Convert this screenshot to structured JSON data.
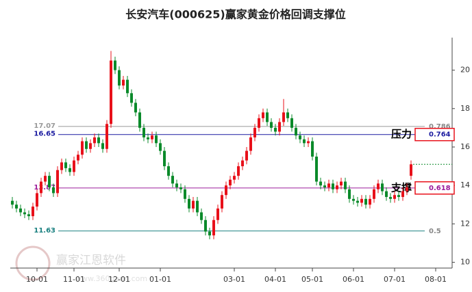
{
  "chart_data": {
    "type": "candlestick",
    "title": "长安汽车(000625)赢家黄金价格回调支撑位",
    "watermark": "赢家江恩软件",
    "watermark_url": "www.360gann.com",
    "open": [
      13.2,
      13.0,
      12.8,
      12.6,
      12.5,
      12.4,
      12.9,
      13.6,
      14.2,
      14.5,
      13.9,
      13.6,
      14.8,
      15.2,
      14.9,
      14.7,
      15.3,
      15.6,
      16.3,
      15.9,
      16.2,
      16.5,
      16.2,
      15.9,
      17.2,
      20.5,
      20.0,
      19.2,
      19.5,
      18.8,
      18.3,
      17.8,
      17.0,
      16.5,
      16.4,
      16.6,
      16.2,
      15.8,
      15.0,
      14.5,
      14.1,
      13.9,
      13.8,
      13.3,
      12.8,
      13.2,
      12.6,
      12.2,
      11.6,
      11.4,
      12.2,
      12.8,
      13.5,
      14.0,
      14.3,
      14.5,
      15.0,
      15.3,
      15.8,
      16.5,
      17.0,
      17.5,
      17.8,
      17.3,
      17.0,
      16.8,
      17.3,
      17.8,
      17.5,
      17.0,
      16.6,
      16.4,
      16.2,
      16.3,
      15.5,
      14.2,
      14.0,
      13.9,
      14.1,
      13.8,
      14.0,
      14.2,
      13.8,
      13.3,
      13.2,
      13.1,
      13.3,
      13.0,
      13.3,
      13.8,
      14.1,
      13.7,
      13.4,
      13.3,
      13.5,
      13.4,
      13.7,
      14.5
    ],
    "high": [
      13.4,
      13.2,
      13.0,
      12.8,
      12.7,
      13.1,
      13.8,
      14.4,
      14.7,
      14.7,
      14.1,
      15.0,
      15.4,
      15.4,
      15.1,
      15.5,
      15.8,
      16.5,
      16.5,
      16.4,
      16.7,
      16.7,
      16.4,
      17.4,
      21.0,
      20.7,
      20.2,
      19.7,
      19.7,
      19.0,
      18.5,
      18.0,
      17.2,
      16.7,
      16.8,
      16.8,
      16.4,
      16.0,
      15.2,
      14.7,
      14.3,
      14.1,
      14.0,
      13.5,
      13.4,
      13.4,
      12.8,
      12.4,
      11.8,
      12.4,
      13.0,
      13.7,
      14.2,
      14.5,
      14.7,
      15.2,
      15.5,
      16.0,
      16.7,
      17.2,
      17.7,
      18.0,
      18.0,
      17.5,
      17.2,
      17.5,
      18.5,
      18.0,
      17.7,
      17.2,
      16.8,
      16.6,
      16.5,
      16.5,
      15.7,
      14.4,
      14.2,
      14.3,
      14.3,
      14.2,
      14.4,
      14.4,
      14.0,
      13.5,
      13.4,
      13.5,
      13.5,
      13.5,
      14.0,
      14.3,
      14.3,
      13.9,
      13.6,
      13.7,
      13.7,
      13.9,
      14.1,
      15.3
    ],
    "low": [
      12.8,
      12.6,
      12.4,
      12.3,
      12.2,
      12.2,
      12.7,
      13.4,
      14.0,
      13.7,
      13.4,
      13.4,
      14.6,
      14.7,
      14.5,
      14.5,
      15.1,
      15.4,
      15.7,
      15.7,
      16.0,
      16.0,
      15.7,
      15.7,
      17.0,
      19.8,
      19.0,
      19.0,
      18.6,
      18.1,
      17.6,
      16.8,
      16.3,
      16.2,
      16.2,
      16.0,
      15.6,
      14.8,
      14.3,
      13.9,
      13.7,
      13.6,
      13.1,
      12.6,
      12.6,
      12.4,
      12.0,
      11.4,
      11.2,
      11.2,
      12.0,
      12.6,
      13.3,
      13.8,
      14.1,
      14.3,
      14.8,
      15.1,
      15.6,
      16.3,
      16.8,
      17.3,
      17.1,
      16.8,
      16.6,
      16.6,
      17.1,
      17.3,
      16.8,
      16.4,
      16.2,
      16.0,
      16.0,
      15.3,
      14.0,
      13.8,
      13.7,
      13.7,
      13.6,
      13.6,
      13.8,
      13.6,
      13.1,
      13.0,
      12.9,
      12.9,
      12.8,
      12.8,
      13.1,
      13.6,
      13.5,
      13.2,
      13.1,
      13.1,
      13.2,
      13.2,
      13.5,
      14.3
    ],
    "close": [
      13.0,
      12.8,
      12.6,
      12.5,
      12.4,
      12.9,
      13.6,
      14.2,
      14.5,
      13.9,
      13.6,
      14.8,
      15.2,
      14.9,
      14.7,
      15.3,
      15.6,
      16.3,
      15.9,
      16.2,
      16.5,
      16.2,
      15.9,
      17.2,
      20.5,
      20.0,
      19.2,
      19.5,
      18.8,
      18.3,
      17.8,
      17.0,
      16.5,
      16.4,
      16.6,
      16.2,
      15.8,
      15.0,
      14.5,
      14.1,
      13.9,
      13.8,
      13.3,
      12.8,
      13.2,
      12.6,
      12.2,
      11.6,
      11.4,
      12.2,
      12.8,
      13.5,
      14.0,
      14.3,
      14.5,
      15.0,
      15.3,
      15.8,
      16.5,
      17.0,
      17.5,
      17.8,
      17.3,
      17.0,
      16.8,
      17.3,
      17.8,
      17.5,
      17.0,
      16.6,
      16.4,
      16.2,
      16.3,
      15.5,
      14.2,
      14.0,
      13.9,
      14.1,
      13.8,
      14.0,
      14.2,
      13.8,
      13.3,
      13.2,
      13.1,
      13.3,
      13.0,
      13.3,
      13.8,
      14.1,
      13.7,
      13.4,
      13.3,
      13.5,
      13.4,
      13.7,
      13.9,
      15.1
    ],
    "up_color": "#e8101a",
    "down_color": "#0a8a2a",
    "xlim": [
      -0.5,
      106.5
    ],
    "xticks": [
      {
        "value": 6,
        "label": "10-01"
      },
      {
        "value": 15,
        "label": "11-01"
      },
      {
        "value": 26,
        "label": "12-01"
      },
      {
        "value": 36,
        "label": "01-01"
      },
      {
        "value": 54,
        "label": "03-01"
      },
      {
        "value": 64,
        "label": "04-01"
      },
      {
        "value": 73,
        "label": "05-01"
      },
      {
        "value": 83,
        "label": "06-01"
      },
      {
        "value": 93,
        "label": "07-01"
      },
      {
        "value": 103,
        "label": "08-01"
      }
    ],
    "ylim": [
      9.7,
      21.8
    ],
    "yticks": [
      10,
      12,
      14,
      16,
      18,
      20
    ],
    "levels": [
      {
        "value": 17.07,
        "ratio": 0.786,
        "color": "#999999"
      },
      {
        "value": 16.65,
        "ratio": 0.764,
        "color": "#1a1aa0",
        "tag": "压力"
      },
      {
        "value": 13.87,
        "ratio": 0.618,
        "color": "#9b1a9b",
        "tag": "支撑"
      },
      {
        "value": 11.63,
        "ratio": 0.5,
        "color": "#1a8080"
      }
    ]
  }
}
